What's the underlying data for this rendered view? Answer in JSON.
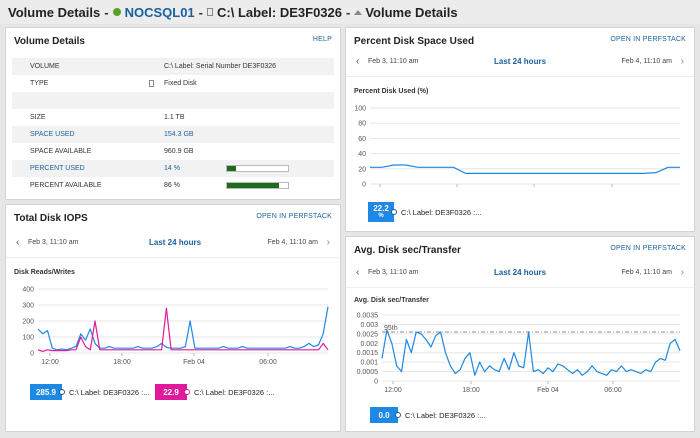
{
  "header": {
    "title": "Volume Details",
    "sep1": "-",
    "node": "NOCSQL01",
    "sep2": "-",
    "volume": "C:\\ Label: DE3F0326",
    "sep3": "-",
    "page": "Volume Details"
  },
  "volume_details": {
    "title": "Volume Details",
    "help": "HELP",
    "rows": [
      {
        "key": "VOLUME",
        "value": "C:\\ Label: Serial Number DE3F0326"
      },
      {
        "key": "TYPE",
        "value": "Fixed Disk"
      },
      {
        "key": "",
        "value": ""
      },
      {
        "key": "SIZE",
        "value": "1.1 TB"
      },
      {
        "key": "SPACE USED",
        "value": "154.3 GB"
      },
      {
        "key": "SPACE AVAILABLE",
        "value": "960.9 GB"
      },
      {
        "key": "PERCENT USED",
        "value": "14 %"
      },
      {
        "key": "PERCENT AVAILABLE",
        "value": "86 %"
      }
    ],
    "percent_used": 14,
    "percent_available": 86
  },
  "disk_space": {
    "title": "Percent Disk Space Used",
    "link": "OPEN IN PERFSTACK",
    "start": "Feb 3, 11:10 am",
    "range": "Last 24 hours",
    "end": "Feb 4, 11:10 am",
    "legend_value": "22.2",
    "legend_unit": "%",
    "legend_label": "C:\\ Label: DE3F0326 :..."
  },
  "iops": {
    "title": "Total Disk IOPS",
    "link": "OPEN IN PERFSTACK",
    "start": "Feb 3, 11:10 am",
    "range": "Last 24 hours",
    "end": "Feb 4, 11:10 am",
    "legend1_value": "285.9",
    "legend1_label": "C:\\ Label: DE3F0326 :...",
    "legend2_value": "22.9",
    "legend2_label": "C:\\ Label: DE3F0326 :..."
  },
  "transfer": {
    "title": "Avg. Disk sec/Transfer",
    "link": "OPEN IN PERFSTACK",
    "start": "Feb 3, 11:10 am",
    "range": "Last 24 hours",
    "end": "Feb 4, 11:10 am",
    "legend_value": "0.0",
    "legend_label": "C:\\ Label: DE3F0326 :..."
  },
  "colors": {
    "blue": "#1e88e5",
    "magenta": "#e0199d",
    "green": "#1d6b1d",
    "link": "#1a5f9e"
  },
  "chart_data": [
    {
      "type": "line",
      "ylabel": "Percent Disk Used (%)",
      "ylim": [
        0,
        100
      ],
      "yticks": [
        "0",
        "20",
        "40",
        "60",
        "80",
        "100"
      ],
      "xticks": [
        "12:00",
        "18:00",
        "Feb 04",
        "06:00"
      ],
      "series": [
        {
          "values": [
            22,
            22,
            25,
            25,
            22,
            22,
            22,
            22,
            14,
            14,
            14,
            14,
            14,
            14,
            14,
            14,
            14,
            14,
            14,
            14,
            14,
            14,
            14,
            14,
            15,
            22,
            22
          ]
        }
      ]
    },
    {
      "type": "line",
      "ylabel": "Disk Reads/Writes",
      "ylim": [
        0,
        400
      ],
      "yticks": [
        "0",
        "100",
        "200",
        "300",
        "400"
      ],
      "xticks": [
        "12:00",
        "18:00",
        "Feb 04",
        "06:00"
      ],
      "series": [
        {
          "color": "#1e88e5",
          "values": [
            150,
            120,
            140,
            30,
            20,
            25,
            20,
            30,
            40,
            120,
            80,
            150,
            60,
            30,
            30,
            40,
            30,
            30,
            30,
            30,
            30,
            40,
            30,
            30,
            30,
            40,
            60,
            35,
            30,
            30,
            30,
            40,
            200,
            30,
            30,
            30,
            30,
            30,
            30,
            40,
            30,
            30,
            30,
            40,
            30,
            30,
            30,
            30,
            30,
            30,
            30,
            30,
            30,
            40,
            30,
            30,
            40,
            60,
            40,
            50,
            120,
            290
          ]
        },
        {
          "color": "#e0199d",
          "values": [
            20,
            10,
            20,
            15,
            15,
            15,
            15,
            20,
            20,
            100,
            40,
            20,
            200,
            20,
            20,
            20,
            20,
            20,
            20,
            20,
            20,
            20,
            20,
            20,
            20,
            20,
            20,
            280,
            20,
            20,
            20,
            20,
            20,
            20,
            20,
            20,
            20,
            20,
            20,
            20,
            20,
            20,
            20,
            20,
            20,
            20,
            20,
            20,
            20,
            20,
            20,
            20,
            20,
            20,
            20,
            20,
            20,
            20,
            20,
            20,
            60,
            20
          ]
        }
      ]
    },
    {
      "type": "line",
      "ylabel": "Avg. Disk sec/Transfer",
      "ylim": [
        0,
        0.0035
      ],
      "yticks": [
        "0",
        "0.0005",
        "0.001",
        "0.0015",
        "0.002",
        "0.0025",
        "0.003",
        "0.0035"
      ],
      "xticks": [
        "12:00",
        "18:00",
        "Feb 04",
        "06:00"
      ],
      "threshold_label": "95th",
      "threshold": 0.0026,
      "series": [
        {
          "values": [
            0.0012,
            0.0027,
            0.002,
            0.0008,
            0.0005,
            0.0022,
            0.0015,
            0.0026,
            0.0025,
            0.0022,
            0.0018,
            0.0024,
            0.0026,
            0.0015,
            0.0008,
            0.0004,
            0.0006,
            0.0012,
            0.0015,
            0.0003,
            0.001,
            0.0005,
            0.0008,
            0.0006,
            0.0005,
            0.0012,
            0.0006,
            0.0015,
            0.0008,
            0.0007,
            0.0026,
            0.0005,
            0.0006,
            0.0004,
            0.0007,
            0.0005,
            0.0009,
            0.0008,
            0.0006,
            0.0004,
            0.0006,
            0.0003,
            0.0005,
            0.0008,
            0.0005,
            0.0004,
            0.0003,
            0.0006,
            0.0005,
            0.0008,
            0.0005,
            0.0006,
            0.0005,
            0.0004,
            0.0006,
            0.0005,
            0.001,
            0.0012,
            0.0011,
            0.002,
            0.0022,
            0.0016
          ]
        }
      ]
    }
  ]
}
